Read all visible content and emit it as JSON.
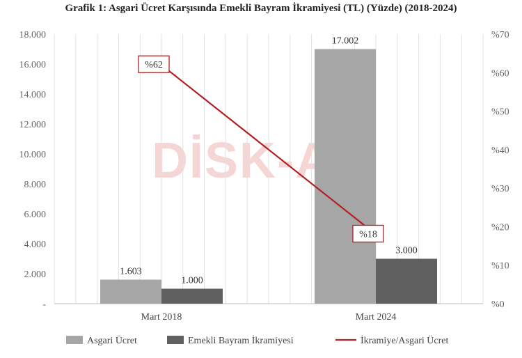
{
  "chart_data": {
    "type": "bar",
    "title": "Grafik 1: Asgari Ücret Karşısında Emekli Bayram İkramiyesi (TL) (Yüzde) (2018-2024)",
    "categories": [
      "Mart 2018",
      "Mart 2024"
    ],
    "series": [
      {
        "name": "Asgari Ücret",
        "type": "bar",
        "axis": "left",
        "color": "#a6a6a6",
        "values": [
          1603,
          17002
        ],
        "labels": [
          "1.603",
          "17.002"
        ]
      },
      {
        "name": "Emekli Bayram İkramiyesi",
        "type": "bar",
        "axis": "left",
        "color": "#606060",
        "values": [
          1000,
          3000
        ],
        "labels": [
          "1.000",
          "3.000"
        ]
      },
      {
        "name": "İkramiye/Asgari Ücret",
        "type": "line",
        "axis": "right",
        "color": "#b21f24",
        "values": [
          62,
          18
        ],
        "labels": [
          "%62",
          "%18"
        ]
      }
    ],
    "y_left": {
      "ylim": [
        0,
        18000
      ],
      "ticks": [
        0,
        2000,
        4000,
        6000,
        8000,
        10000,
        12000,
        14000,
        16000,
        18000
      ],
      "tick_labels": [
        "-",
        "2.000",
        "4.000",
        "6.000",
        "8.000",
        "10.000",
        "12.000",
        "14.000",
        "16.000",
        "18.000"
      ]
    },
    "y_right": {
      "ylim": [
        0,
        70
      ],
      "ticks": [
        0,
        10,
        20,
        30,
        40,
        50,
        60,
        70
      ],
      "tick_labels": [
        "%0",
        "%10",
        "%20",
        "%30",
        "%40",
        "%50",
        "%60",
        "%70"
      ]
    },
    "grid": "vertical",
    "legend": "bottom",
    "watermark": "DİSK-AR"
  }
}
